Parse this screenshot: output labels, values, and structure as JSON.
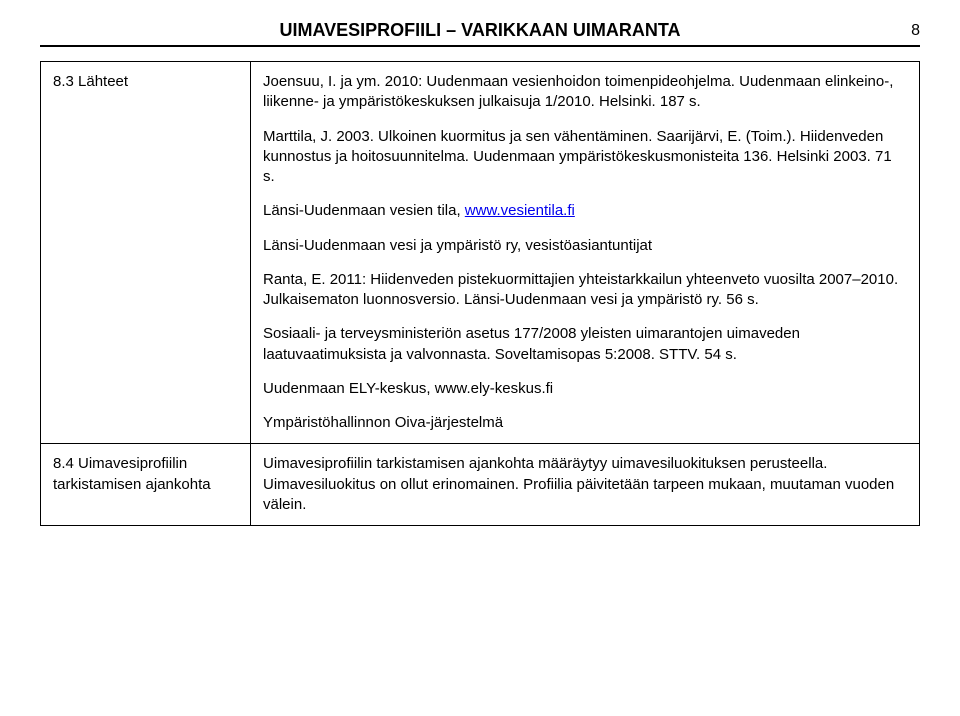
{
  "header": {
    "title": "UIMAVESIPROFIILI – VARIKKAAN UIMARANTA",
    "page_number": "8"
  },
  "rows": [
    {
      "left": {
        "label": "8.3 Lähteet"
      },
      "right": {
        "p1": "Joensuu, I. ja ym. 2010: Uudenmaan vesienhoidon toimenpideohjelma. Uudenmaan elinkeino-, liikenne- ja ympäristökeskuksen julkaisuja 1/2010. Helsinki. 187 s.",
        "p2": "Marttila, J. 2003. Ulkoinen kuormitus ja sen vähentäminen. Saarijärvi, E. (Toim.). Hiidenveden kunnostus ja hoitosuunnitelma. Uudenmaan ympäristökeskusmonisteita 136. Helsinki 2003. 71 s.",
        "p3_prefix": "Länsi-Uudenmaan vesien tila, ",
        "p3_link": "www.vesientila.fi",
        "p4": "Länsi-Uudenmaan vesi ja ympäristö ry, vesistöasiantuntijat",
        "p5": "Ranta, E. 2011: Hiidenveden pistekuormittajien yhteistarkkailun yhteenveto vuosilta 2007–2010. Julkaisematon luonnosversio. Länsi-Uudenmaan vesi ja ympäristö ry. 56 s.",
        "p6": "Sosiaali- ja terveysministeriön asetus 177/2008 yleisten uimarantojen uimaveden laatuvaatimuksista ja valvonnasta. Soveltamisopas 5:2008. STTV. 54 s.",
        "p7": "Uudenmaan ELY-keskus, www.ely-keskus.fi",
        "p8": "Ympäristöhallinnon Oiva-järjestelmä"
      }
    },
    {
      "left": {
        "label": "8.4 Uimavesiprofiilin tarkistamisen ajankohta"
      },
      "right": {
        "p1": "Uimavesiprofiilin tarkistamisen ajankohta määräytyy uimavesiluokituksen perusteella. Uimavesiluokitus on ollut erinomainen. Profiilia päivitetään tarpeen mukaan, muutaman vuoden välein."
      }
    }
  ]
}
